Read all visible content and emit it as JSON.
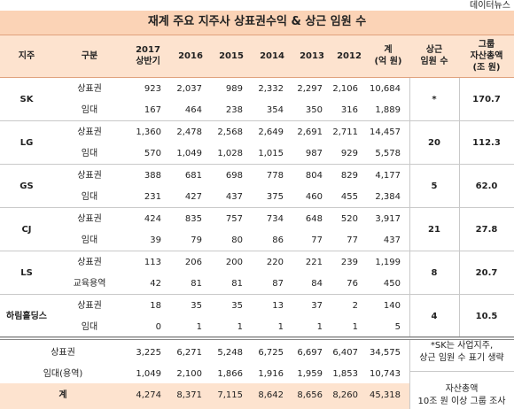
{
  "header": {
    "source": "데이터뉴스",
    "title": "재계 주요 지주사 상표권수익 & 상근 임원 수"
  },
  "columns": [
    [
      "지주"
    ],
    [
      "구분"
    ],
    [
      "2017",
      "상반기"
    ],
    [
      "2016"
    ],
    [
      "2015"
    ],
    [
      "2014"
    ],
    [
      "2013"
    ],
    [
      "2012"
    ],
    [
      "계",
      "(억 원)"
    ],
    [
      "상근",
      "임원 수"
    ],
    [
      "그룹",
      "자산총액",
      "(조 원)"
    ]
  ],
  "groups": [
    {
      "name": "SK",
      "rows": [
        {
          "label": "상표권",
          "values": [
            "923",
            "2,037",
            "989",
            "2,332",
            "2,297",
            "2,106",
            "10,684"
          ]
        },
        {
          "label": "임대",
          "values": [
            "167",
            "464",
            "238",
            "354",
            "350",
            "316",
            "1,889"
          ]
        }
      ],
      "officers": "*",
      "assets": "170.7"
    },
    {
      "name": "LG",
      "rows": [
        {
          "label": "상표권",
          "values": [
            "1,360",
            "2,478",
            "2,568",
            "2,649",
            "2,691",
            "2,711",
            "14,457"
          ]
        },
        {
          "label": "임대",
          "values": [
            "570",
            "1,049",
            "1,028",
            "1,015",
            "987",
            "929",
            "5,578"
          ]
        }
      ],
      "officers": "20",
      "assets": "112.3"
    },
    {
      "name": "GS",
      "rows": [
        {
          "label": "상표권",
          "values": [
            "388",
            "681",
            "698",
            "778",
            "804",
            "829",
            "4,177"
          ]
        },
        {
          "label": "임대",
          "values": [
            "231",
            "427",
            "437",
            "375",
            "460",
            "455",
            "2,384"
          ]
        }
      ],
      "officers": "5",
      "assets": "62.0"
    },
    {
      "name": "CJ",
      "rows": [
        {
          "label": "상표권",
          "values": [
            "424",
            "835",
            "757",
            "734",
            "648",
            "520",
            "3,917"
          ]
        },
        {
          "label": "임대",
          "values": [
            "39",
            "79",
            "80",
            "86",
            "77",
            "77",
            "437"
          ]
        }
      ],
      "officers": "21",
      "assets": "27.8"
    },
    {
      "name": "LS",
      "rows": [
        {
          "label": "상표권",
          "values": [
            "113",
            "206",
            "200",
            "220",
            "221",
            "239",
            "1,199"
          ]
        },
        {
          "label": "교육용역",
          "values": [
            "42",
            "81",
            "81",
            "87",
            "84",
            "76",
            "450"
          ]
        }
      ],
      "officers": "8",
      "assets": "20.7"
    },
    {
      "name": "하림홀딩스",
      "rows": [
        {
          "label": "상표권",
          "values": [
            "18",
            "35",
            "35",
            "13",
            "37",
            "2",
            "140"
          ]
        },
        {
          "label": "임대",
          "values": [
            "0",
            "1",
            "1",
            "1",
            "1",
            "1",
            "5"
          ]
        }
      ],
      "officers": "4",
      "assets": "10.5"
    }
  ],
  "summary": {
    "rows": [
      {
        "label": "상표권",
        "values": [
          "3,225",
          "6,271",
          "5,248",
          "6,725",
          "6,697",
          "6,407",
          "34,575"
        ]
      },
      {
        "label": "임대(용역)",
        "values": [
          "1,049",
          "2,100",
          "1,866",
          "1,916",
          "1,959",
          "1,853",
          "10,743"
        ]
      },
      {
        "label": "계",
        "values": [
          "4,274",
          "8,371",
          "7,115",
          "8,642",
          "8,656",
          "8,260",
          "45,318"
        ]
      }
    ],
    "note": [
      "*SK는 사업지주,",
      "상근 임원 수 표기 생략"
    ],
    "note2": [
      "자산총액",
      "10조 원 이상 그룹 조사"
    ]
  }
}
